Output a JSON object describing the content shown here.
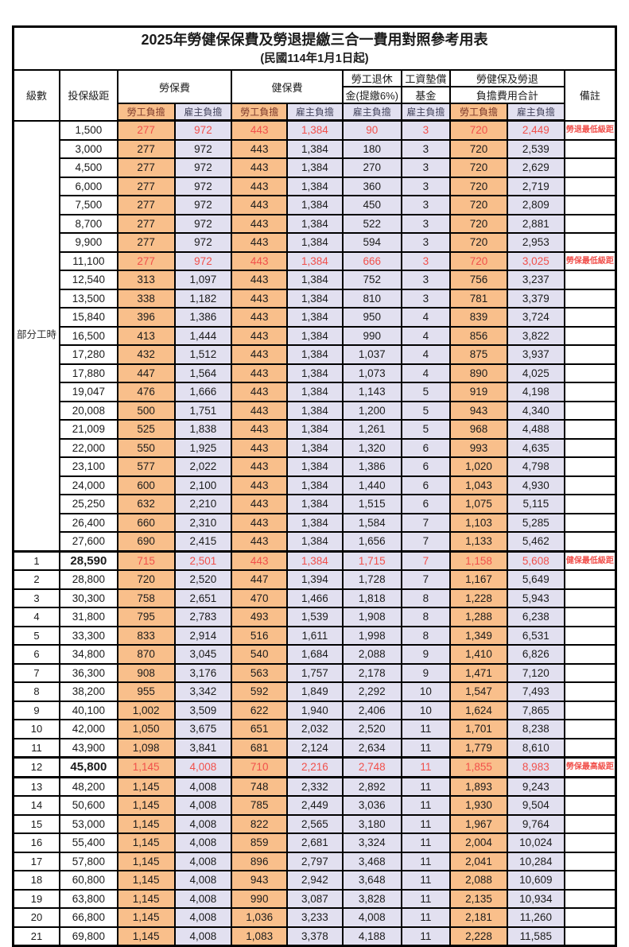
{
  "title": "2025年勞健保保費及勞退提繳三合一費用對照參考用表",
  "subtitle": "(民國114年1月1日起)",
  "header": {
    "level": "級數",
    "bracket": "投保級距",
    "labor_insurance": "勞保費",
    "health_insurance": "健保費",
    "pension_line1": "勞工退休",
    "pension_line2": "金(提繳6%)",
    "wage_fund_line1": "工資墊償",
    "wage_fund_line2": "基金",
    "total_line1": "勞健保及勞退",
    "total_line2": "負擔費用合計",
    "remark": "備註",
    "employee": "勞工負擔",
    "employer": "雇主負擔"
  },
  "group": {
    "label": "部分工時",
    "span": 23
  },
  "value_column_roles": [
    "employee",
    "employer",
    "employee",
    "employer",
    "employer",
    "employer",
    "employee",
    "employer"
  ],
  "colors": {
    "employee_bg": "#f9bf8b",
    "employer_bg": "#e2e0f0",
    "highlight_red": "#f1504b",
    "border": "#000000"
  },
  "rows": [
    {
      "lv": "",
      "bracket": "1,500",
      "v": [
        "277",
        "972",
        "443",
        "1,384",
        "90",
        "3",
        "720",
        "2,449"
      ],
      "red": true,
      "bold": false,
      "note": "勞退最低級距"
    },
    {
      "lv": "",
      "bracket": "3,000",
      "v": [
        "277",
        "972",
        "443",
        "1,384",
        "180",
        "3",
        "720",
        "2,539"
      ],
      "red": false,
      "bold": false,
      "note": ""
    },
    {
      "lv": "",
      "bracket": "4,500",
      "v": [
        "277",
        "972",
        "443",
        "1,384",
        "270",
        "3",
        "720",
        "2,629"
      ],
      "red": false,
      "bold": false,
      "note": ""
    },
    {
      "lv": "",
      "bracket": "6,000",
      "v": [
        "277",
        "972",
        "443",
        "1,384",
        "360",
        "3",
        "720",
        "2,719"
      ],
      "red": false,
      "bold": false,
      "note": ""
    },
    {
      "lv": "",
      "bracket": "7,500",
      "v": [
        "277",
        "972",
        "443",
        "1,384",
        "450",
        "3",
        "720",
        "2,809"
      ],
      "red": false,
      "bold": false,
      "note": ""
    },
    {
      "lv": "",
      "bracket": "8,700",
      "v": [
        "277",
        "972",
        "443",
        "1,384",
        "522",
        "3",
        "720",
        "2,881"
      ],
      "red": false,
      "bold": false,
      "note": ""
    },
    {
      "lv": "",
      "bracket": "9,900",
      "v": [
        "277",
        "972",
        "443",
        "1,384",
        "594",
        "3",
        "720",
        "2,953"
      ],
      "red": false,
      "bold": false,
      "note": ""
    },
    {
      "lv": "",
      "bracket": "11,100",
      "v": [
        "277",
        "972",
        "443",
        "1,384",
        "666",
        "3",
        "720",
        "3,025"
      ],
      "red": true,
      "bold": false,
      "note": "勞保最低級距"
    },
    {
      "lv": "",
      "bracket": "12,540",
      "v": [
        "313",
        "1,097",
        "443",
        "1,384",
        "752",
        "3",
        "756",
        "3,237"
      ],
      "red": false,
      "bold": false,
      "note": ""
    },
    {
      "lv": "",
      "bracket": "13,500",
      "v": [
        "338",
        "1,182",
        "443",
        "1,384",
        "810",
        "3",
        "781",
        "3,379"
      ],
      "red": false,
      "bold": false,
      "note": ""
    },
    {
      "lv": "",
      "bracket": "15,840",
      "v": [
        "396",
        "1,386",
        "443",
        "1,384",
        "950",
        "4",
        "839",
        "3,724"
      ],
      "red": false,
      "bold": false,
      "note": ""
    },
    {
      "lv": "",
      "bracket": "16,500",
      "v": [
        "413",
        "1,444",
        "443",
        "1,384",
        "990",
        "4",
        "856",
        "3,822"
      ],
      "red": false,
      "bold": false,
      "note": ""
    },
    {
      "lv": "",
      "bracket": "17,280",
      "v": [
        "432",
        "1,512",
        "443",
        "1,384",
        "1,037",
        "4",
        "875",
        "3,937"
      ],
      "red": false,
      "bold": false,
      "note": ""
    },
    {
      "lv": "",
      "bracket": "17,880",
      "v": [
        "447",
        "1,564",
        "443",
        "1,384",
        "1,073",
        "4",
        "890",
        "4,025"
      ],
      "red": false,
      "bold": false,
      "note": ""
    },
    {
      "lv": "",
      "bracket": "19,047",
      "v": [
        "476",
        "1,666",
        "443",
        "1,384",
        "1,143",
        "5",
        "919",
        "4,198"
      ],
      "red": false,
      "bold": false,
      "note": ""
    },
    {
      "lv": "",
      "bracket": "20,008",
      "v": [
        "500",
        "1,751",
        "443",
        "1,384",
        "1,200",
        "5",
        "943",
        "4,340"
      ],
      "red": false,
      "bold": false,
      "note": ""
    },
    {
      "lv": "",
      "bracket": "21,009",
      "v": [
        "525",
        "1,838",
        "443",
        "1,384",
        "1,261",
        "5",
        "968",
        "4,488"
      ],
      "red": false,
      "bold": false,
      "note": ""
    },
    {
      "lv": "",
      "bracket": "22,000",
      "v": [
        "550",
        "1,925",
        "443",
        "1,384",
        "1,320",
        "6",
        "993",
        "4,635"
      ],
      "red": false,
      "bold": false,
      "note": ""
    },
    {
      "lv": "",
      "bracket": "23,100",
      "v": [
        "577",
        "2,022",
        "443",
        "1,384",
        "1,386",
        "6",
        "1,020",
        "4,798"
      ],
      "red": false,
      "bold": false,
      "note": ""
    },
    {
      "lv": "",
      "bracket": "24,000",
      "v": [
        "600",
        "2,100",
        "443",
        "1,384",
        "1,440",
        "6",
        "1,043",
        "4,930"
      ],
      "red": false,
      "bold": false,
      "note": ""
    },
    {
      "lv": "",
      "bracket": "25,250",
      "v": [
        "632",
        "2,210",
        "443",
        "1,384",
        "1,515",
        "6",
        "1,075",
        "5,115"
      ],
      "red": false,
      "bold": false,
      "note": ""
    },
    {
      "lv": "",
      "bracket": "26,400",
      "v": [
        "660",
        "2,310",
        "443",
        "1,384",
        "1,584",
        "7",
        "1,103",
        "5,285"
      ],
      "red": false,
      "bold": false,
      "note": ""
    },
    {
      "lv": "",
      "bracket": "27,600",
      "v": [
        "690",
        "2,415",
        "443",
        "1,384",
        "1,656",
        "7",
        "1,133",
        "5,462"
      ],
      "red": false,
      "bold": false,
      "note": ""
    },
    {
      "lv": "1",
      "bracket": "28,590",
      "v": [
        "715",
        "2,501",
        "443",
        "1,384",
        "1,715",
        "7",
        "1,158",
        "5,608"
      ],
      "red": true,
      "bold": true,
      "thick_top": true,
      "note": "健保最低級距"
    },
    {
      "lv": "2",
      "bracket": "28,800",
      "v": [
        "720",
        "2,520",
        "447",
        "1,394",
        "1,728",
        "7",
        "1,167",
        "5,649"
      ],
      "red": false,
      "bold": false,
      "note": ""
    },
    {
      "lv": "3",
      "bracket": "30,300",
      "v": [
        "758",
        "2,651",
        "470",
        "1,466",
        "1,818",
        "8",
        "1,228",
        "5,943"
      ],
      "red": false,
      "bold": false,
      "note": ""
    },
    {
      "lv": "4",
      "bracket": "31,800",
      "v": [
        "795",
        "2,783",
        "493",
        "1,539",
        "1,908",
        "8",
        "1,288",
        "6,238"
      ],
      "red": false,
      "bold": false,
      "note": ""
    },
    {
      "lv": "5",
      "bracket": "33,300",
      "v": [
        "833",
        "2,914",
        "516",
        "1,611",
        "1,998",
        "8",
        "1,349",
        "6,531"
      ],
      "red": false,
      "bold": false,
      "note": ""
    },
    {
      "lv": "6",
      "bracket": "34,800",
      "v": [
        "870",
        "3,045",
        "540",
        "1,684",
        "2,088",
        "9",
        "1,410",
        "6,826"
      ],
      "red": false,
      "bold": false,
      "note": ""
    },
    {
      "lv": "7",
      "bracket": "36,300",
      "v": [
        "908",
        "3,176",
        "563",
        "1,757",
        "2,178",
        "9",
        "1,471",
        "7,120"
      ],
      "red": false,
      "bold": false,
      "note": ""
    },
    {
      "lv": "8",
      "bracket": "38,200",
      "v": [
        "955",
        "3,342",
        "592",
        "1,849",
        "2,292",
        "10",
        "1,547",
        "7,493"
      ],
      "red": false,
      "bold": false,
      "note": ""
    },
    {
      "lv": "9",
      "bracket": "40,100",
      "v": [
        "1,002",
        "3,509",
        "622",
        "1,940",
        "2,406",
        "10",
        "1,624",
        "7,865"
      ],
      "red": false,
      "bold": false,
      "note": ""
    },
    {
      "lv": "10",
      "bracket": "42,000",
      "v": [
        "1,050",
        "3,675",
        "651",
        "2,032",
        "2,520",
        "11",
        "1,701",
        "8,238"
      ],
      "red": false,
      "bold": false,
      "note": ""
    },
    {
      "lv": "11",
      "bracket": "43,900",
      "v": [
        "1,098",
        "3,841",
        "681",
        "2,124",
        "2,634",
        "11",
        "1,779",
        "8,610"
      ],
      "red": false,
      "bold": false,
      "note": ""
    },
    {
      "lv": "12",
      "bracket": "45,800",
      "v": [
        "1,145",
        "4,008",
        "710",
        "2,216",
        "2,748",
        "11",
        "1,855",
        "8,983"
      ],
      "red": true,
      "bold": true,
      "thick_top": true,
      "thick_bottom": true,
      "note": "勞保最高級距"
    },
    {
      "lv": "13",
      "bracket": "48,200",
      "v": [
        "1,145",
        "4,008",
        "748",
        "2,332",
        "2,892",
        "11",
        "1,893",
        "9,243"
      ],
      "red": false,
      "bold": false,
      "note": ""
    },
    {
      "lv": "14",
      "bracket": "50,600",
      "v": [
        "1,145",
        "4,008",
        "785",
        "2,449",
        "3,036",
        "11",
        "1,930",
        "9,504"
      ],
      "red": false,
      "bold": false,
      "note": ""
    },
    {
      "lv": "15",
      "bracket": "53,000",
      "v": [
        "1,145",
        "4,008",
        "822",
        "2,565",
        "3,180",
        "11",
        "1,967",
        "9,764"
      ],
      "red": false,
      "bold": false,
      "note": ""
    },
    {
      "lv": "16",
      "bracket": "55,400",
      "v": [
        "1,145",
        "4,008",
        "859",
        "2,681",
        "3,324",
        "11",
        "2,004",
        "10,024"
      ],
      "red": false,
      "bold": false,
      "note": ""
    },
    {
      "lv": "17",
      "bracket": "57,800",
      "v": [
        "1,145",
        "4,008",
        "896",
        "2,797",
        "3,468",
        "11",
        "2,041",
        "10,284"
      ],
      "red": false,
      "bold": false,
      "note": ""
    },
    {
      "lv": "18",
      "bracket": "60,800",
      "v": [
        "1,145",
        "4,008",
        "943",
        "2,942",
        "3,648",
        "11",
        "2,088",
        "10,609"
      ],
      "red": false,
      "bold": false,
      "note": ""
    },
    {
      "lv": "19",
      "bracket": "63,800",
      "v": [
        "1,145",
        "4,008",
        "990",
        "3,087",
        "3,828",
        "11",
        "2,135",
        "10,934"
      ],
      "red": false,
      "bold": false,
      "note": ""
    },
    {
      "lv": "20",
      "bracket": "66,800",
      "v": [
        "1,145",
        "4,008",
        "1,036",
        "3,233",
        "4,008",
        "11",
        "2,181",
        "11,260"
      ],
      "red": false,
      "bold": false,
      "note": ""
    },
    {
      "lv": "21",
      "bracket": "69,800",
      "v": [
        "1,145",
        "4,008",
        "1,083",
        "3,378",
        "4,188",
        "11",
        "2,228",
        "11,585"
      ],
      "red": false,
      "bold": false,
      "note": ""
    }
  ]
}
